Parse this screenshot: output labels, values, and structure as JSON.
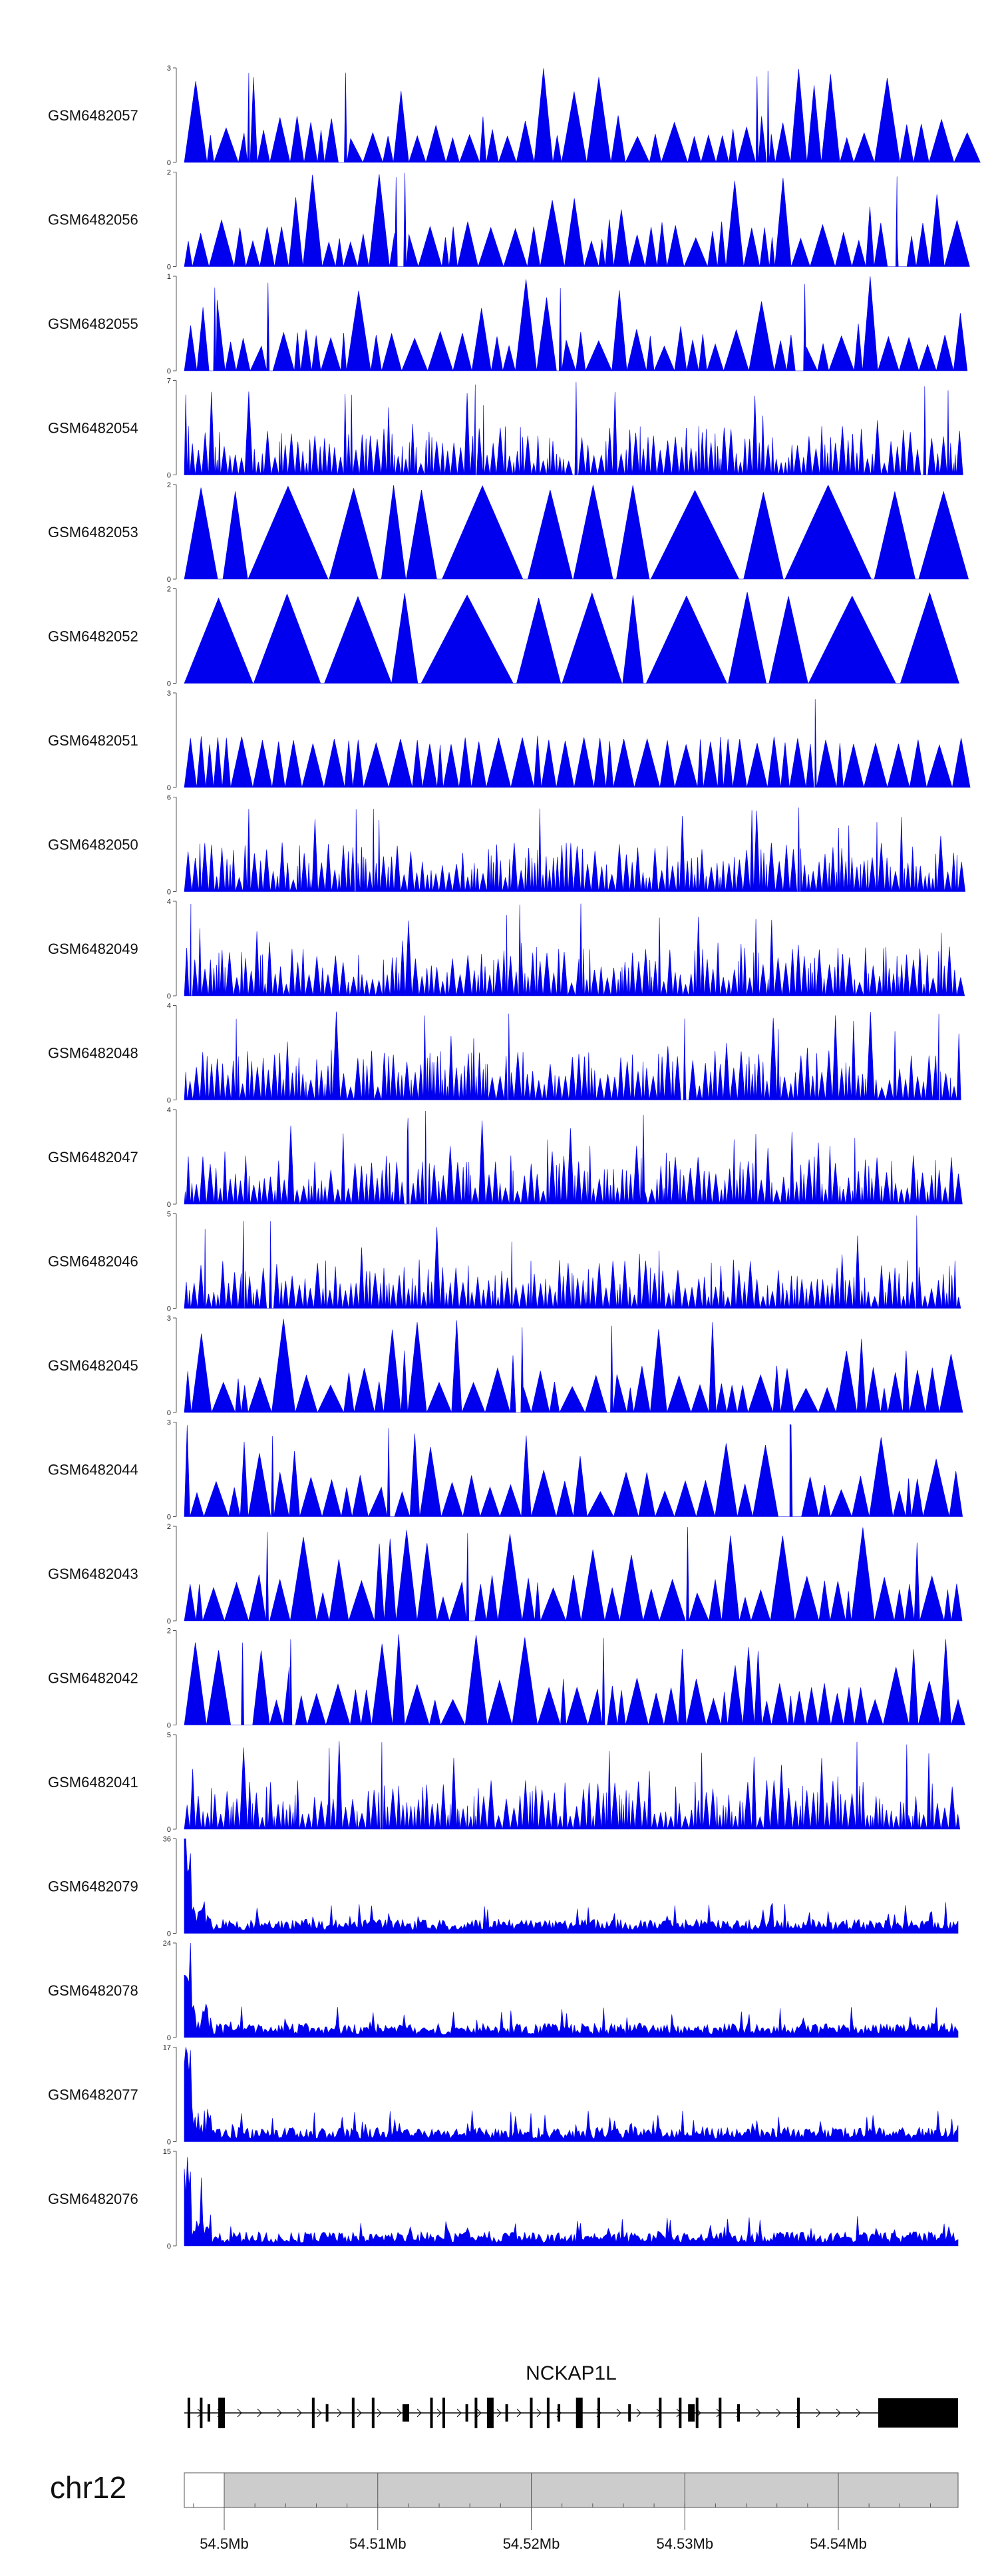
{
  "chart_data": {
    "type": "area",
    "chromosome": "chr12",
    "xlim": [
      54497400,
      54547800
    ],
    "x_ticks": [
      {
        "pos": 54500000,
        "label": "54.5Mb"
      },
      {
        "pos": 54510000,
        "label": "54.51Mb"
      },
      {
        "pos": 54520000,
        "label": "54.52Mb"
      },
      {
        "pos": 54530000,
        "label": "54.53Mb"
      },
      {
        "pos": 54540000,
        "label": "54.54Mb"
      }
    ],
    "ideogram_highlight_start": 54500000,
    "tracks": [
      {
        "name": "GSM6482057",
        "ymax": 3,
        "ymin_label": "0",
        "ymax_label": "3",
        "style": "sparse",
        "peaks": 4
      },
      {
        "name": "GSM6482056",
        "ymax": 2,
        "ymin_label": "0",
        "ymax_label": "2",
        "style": "sparse",
        "peaks": 3
      },
      {
        "name": "GSM6482055",
        "ymax": 1,
        "ymin_label": "0",
        "ymax_label": "1",
        "style": "sparse",
        "peaks": 4
      },
      {
        "name": "GSM6482054",
        "ymax": 7,
        "ymin_label": "0",
        "ymax_label": "7",
        "style": "dense",
        "peaks": 3
      },
      {
        "name": "GSM6482053",
        "ymax": 2,
        "ymin_label": "0",
        "ymax_label": "2",
        "style": "triangles",
        "peaks": 0
      },
      {
        "name": "GSM6482052",
        "ymax": 2,
        "ymin_label": "0",
        "ymax_label": "2",
        "style": "triangles",
        "peaks": 0
      },
      {
        "name": "GSM6482051",
        "ymax": 3,
        "ymin_label": "0",
        "ymax_label": "3",
        "style": "sparse-low",
        "peaks": 1
      },
      {
        "name": "GSM6482050",
        "ymax": 6,
        "ymin_label": "0",
        "ymax_label": "6",
        "style": "dense",
        "peaks": 2
      },
      {
        "name": "GSM6482049",
        "ymax": 4,
        "ymin_label": "0",
        "ymax_label": "4",
        "style": "dense",
        "peaks": 3
      },
      {
        "name": "GSM6482048",
        "ymax": 4,
        "ymin_label": "0",
        "ymax_label": "4",
        "style": "dense",
        "peaks": 3
      },
      {
        "name": "GSM6482047",
        "ymax": 4,
        "ymin_label": "0",
        "ymax_label": "4",
        "style": "dense",
        "peaks": 3
      },
      {
        "name": "GSM6482046",
        "ymax": 5,
        "ymin_label": "0",
        "ymax_label": "5",
        "style": "dense",
        "peaks": 3
      },
      {
        "name": "GSM6482045",
        "ymax": 3,
        "ymin_label": "0",
        "ymax_label": "3",
        "style": "sparse",
        "peaks": 2
      },
      {
        "name": "GSM6482044",
        "ymax": 3,
        "ymin_label": "0",
        "ymax_label": "3",
        "style": "sparse",
        "peaks": 3
      },
      {
        "name": "GSM6482043",
        "ymax": 2,
        "ymin_label": "0",
        "ymax_label": "2",
        "style": "sparse",
        "peaks": 3
      },
      {
        "name": "GSM6482042",
        "ymax": 2,
        "ymin_label": "0",
        "ymax_label": "2",
        "style": "sparse",
        "peaks": 3
      },
      {
        "name": "GSM6482041",
        "ymax": 5,
        "ymin_label": "0",
        "ymax_label": "5",
        "style": "dense",
        "peaks": 3
      },
      {
        "name": "GSM6482079",
        "ymax": 36,
        "ymin_label": "0",
        "ymax_label": "36",
        "style": "cov",
        "peaks": 0
      },
      {
        "name": "GSM6482078",
        "ymax": 24,
        "ymin_label": "0",
        "ymax_label": "24",
        "style": "cov",
        "peaks": 0
      },
      {
        "name": "GSM6482077",
        "ymax": 17,
        "ymin_label": "0",
        "ymax_label": "17",
        "style": "cov",
        "peaks": 0
      },
      {
        "name": "GSM6482076",
        "ymax": 15,
        "ymin_label": "0",
        "ymax_label": "15",
        "style": "cov",
        "peaks": 0
      }
    ],
    "gene": {
      "name": "NCKAP1L",
      "strand": "+",
      "start": 54497400,
      "end": 54547800,
      "exons": [
        54497700,
        54498500,
        54499000,
        54499700,
        54505800,
        54506700,
        54508400,
        54509700,
        54511700,
        54513500,
        54514300,
        54515800,
        54516400,
        54517200,
        54518400,
        54520000,
        54521100,
        54521800,
        54523000,
        54524400,
        54526400,
        54528400,
        54529700,
        54530300,
        54530800,
        54532300,
        54533500,
        54537400
      ]
    }
  },
  "colors": {
    "signal": "#0000ee",
    "axis": "#555555",
    "gene": "#000000",
    "ideogram_fill": "#cccccc"
  }
}
